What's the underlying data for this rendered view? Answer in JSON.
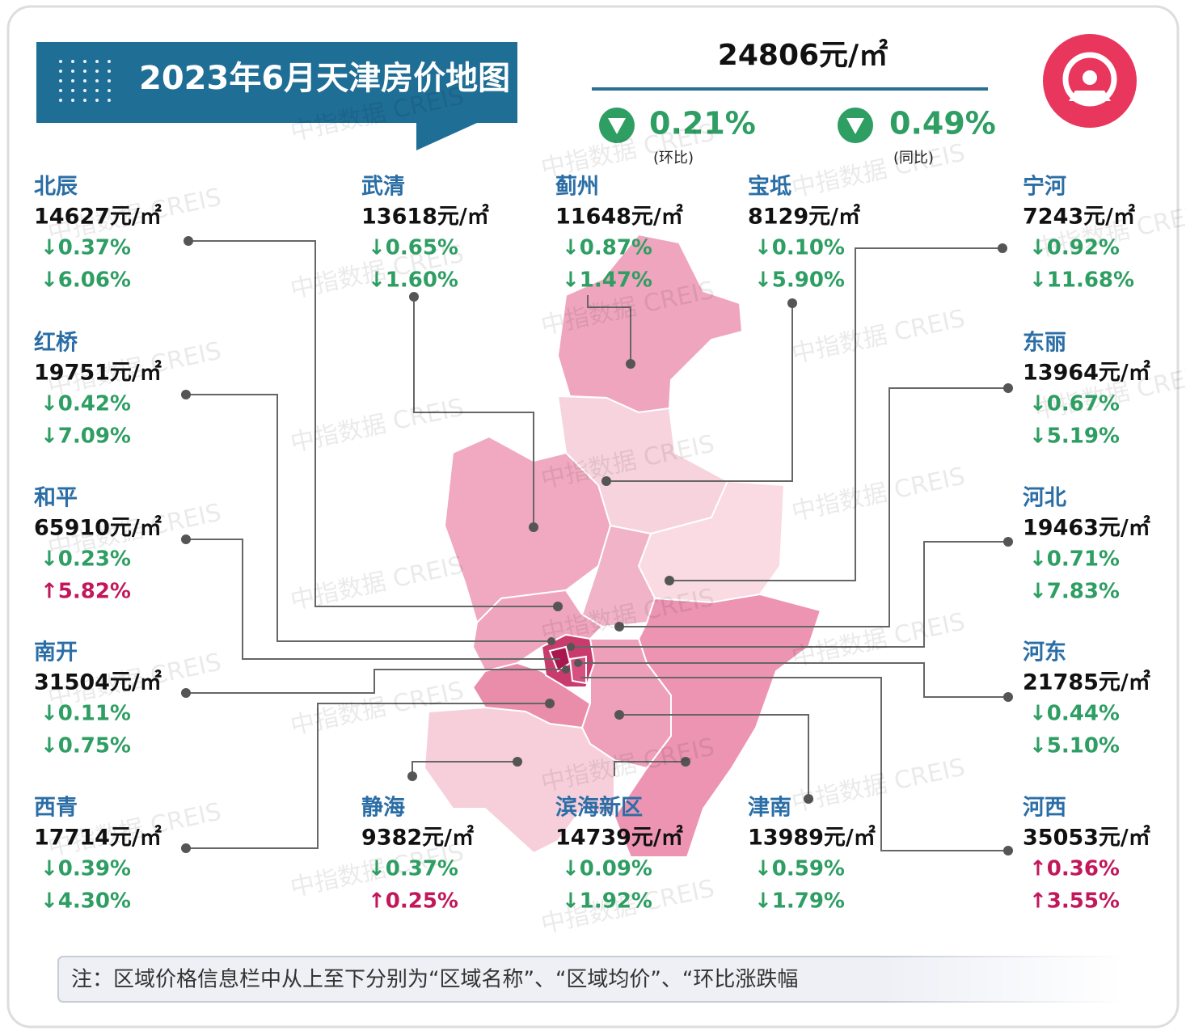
{
  "header": {
    "title": "2023年6月天津房价地图"
  },
  "summary": {
    "price": "24806元/㎡",
    "mom": "0.21%",
    "mom_label": "(环比)",
    "yoy": "0.49%",
    "yoy_label": "(同比)"
  },
  "watermark": "中指数据 CREIS",
  "districts": [
    {
      "name": "北辰",
      "price": "14627元/㎡",
      "mom": "↓0.37%",
      "yoy": "↓6.06%",
      "mom_color": "#2e9e63",
      "yoy_color": "#2e9e63"
    },
    {
      "name": "武清",
      "price": "13618元/㎡",
      "mom": "↓0.65%",
      "yoy": "↓1.60%",
      "mom_color": "#2e9e63",
      "yoy_color": "#2e9e63"
    },
    {
      "name": "蓟州",
      "price": "11648元/㎡",
      "mom": "↓0.87%",
      "yoy": "↓1.47%",
      "mom_color": "#2e9e63",
      "yoy_color": "#2e9e63"
    },
    {
      "name": "宝坻",
      "price": "8129元/㎡",
      "mom": "↓0.10%",
      "yoy": "↓5.90%",
      "mom_color": "#2e9e63",
      "yoy_color": "#2e9e63"
    },
    {
      "name": "宁河",
      "price": "7243元/㎡",
      "mom": "↓0.92%",
      "yoy": "↓11.68%",
      "mom_color": "#2e9e63",
      "yoy_color": "#2e9e63"
    },
    {
      "name": "红桥",
      "price": "19751元/㎡",
      "mom": "↓0.42%",
      "yoy": "↓7.09%",
      "mom_color": "#2e9e63",
      "yoy_color": "#2e9e63"
    },
    {
      "name": "东丽",
      "price": "13964元/㎡",
      "mom": "↓0.67%",
      "yoy": "↓5.19%",
      "mom_color": "#2e9e63",
      "yoy_color": "#2e9e63"
    },
    {
      "name": "和平",
      "price": "65910元/㎡",
      "mom": "↓0.23%",
      "yoy": "↑5.82%",
      "mom_color": "#2e9e63",
      "yoy_color": "#c2185b"
    },
    {
      "name": "河北",
      "price": "19463元/㎡",
      "mom": "↓0.71%",
      "yoy": "↓7.83%",
      "mom_color": "#2e9e63",
      "yoy_color": "#2e9e63"
    },
    {
      "name": "南开",
      "price": "31504元/㎡",
      "mom": "↓0.11%",
      "yoy": "↓0.75%",
      "mom_color": "#2e9e63",
      "yoy_color": "#2e9e63"
    },
    {
      "name": "河东",
      "price": "21785元/㎡",
      "mom": "↓0.44%",
      "yoy": "↓5.10%",
      "mom_color": "#2e9e63",
      "yoy_color": "#2e9e63"
    },
    {
      "name": "西青",
      "price": "17714元/㎡",
      "mom": "↓0.39%",
      "yoy": "↓4.30%",
      "mom_color": "#2e9e63",
      "yoy_color": "#2e9e63"
    },
    {
      "name": "静海",
      "price": "9382元/㎡",
      "mom": "↓0.37%",
      "yoy": "↑0.25%",
      "mom_color": "#2e9e63",
      "yoy_color": "#c2185b"
    },
    {
      "name": "滨海新区",
      "price": "14739元/㎡",
      "mom": "↓0.09%",
      "yoy": "↓1.92%",
      "mom_color": "#2e9e63",
      "yoy_color": "#2e9e63"
    },
    {
      "name": "津南",
      "price": "13989元/㎡",
      "mom": "↓0.59%",
      "yoy": "↓1.79%",
      "mom_color": "#2e9e63",
      "yoy_color": "#2e9e63"
    },
    {
      "name": "河西",
      "price": "35053元/㎡",
      "mom": "↑0.36%",
      "yoy": "↑3.55%",
      "mom_color": "#c2185b",
      "yoy_color": "#c2185b"
    }
  ],
  "footer": {
    "note": "注：区域价格信息栏中从上至下分别为“区域名称”、“区域均价”、“环比涨跌幅"
  }
}
